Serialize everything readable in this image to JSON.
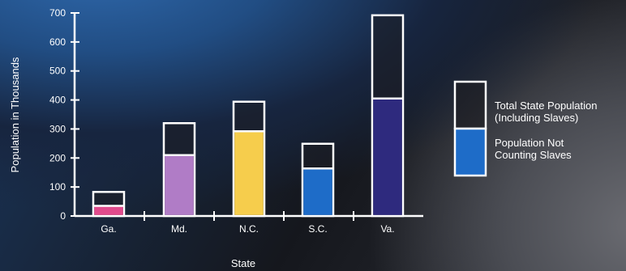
{
  "chart_data": {
    "type": "bar",
    "title": "",
    "xlabel": "State",
    "ylabel": "Population in Thousands",
    "ylim": [
      0,
      700
    ],
    "yticks": [
      0,
      100,
      200,
      300,
      400,
      500,
      600,
      700
    ],
    "categories": [
      "Ga.",
      "Md.",
      "N.C.",
      "S.C.",
      "Va."
    ],
    "series": [
      {
        "name": "Total State Population (Including Slaves)",
        "legend_lines": [
          "Total State Population",
          "(Including Slaves)"
        ],
        "values": [
          83,
          320,
          394,
          249,
          692
        ],
        "color": "#1d1d22"
      },
      {
        "name": "Population Not Counting Slaves",
        "legend_lines": [
          "Population Not",
          "Counting Slaves"
        ],
        "values": [
          35,
          210,
          292,
          164,
          405
        ]
      }
    ],
    "bar_colors": [
      "#e14a8c",
      "#b07cc6",
      "#f6cd4c",
      "#1e6cc8",
      "#2e2a7e"
    ],
    "legend_colors": [
      "#1d1d22",
      "#1e6cc8"
    ],
    "grid": false,
    "legend_position": "right"
  }
}
